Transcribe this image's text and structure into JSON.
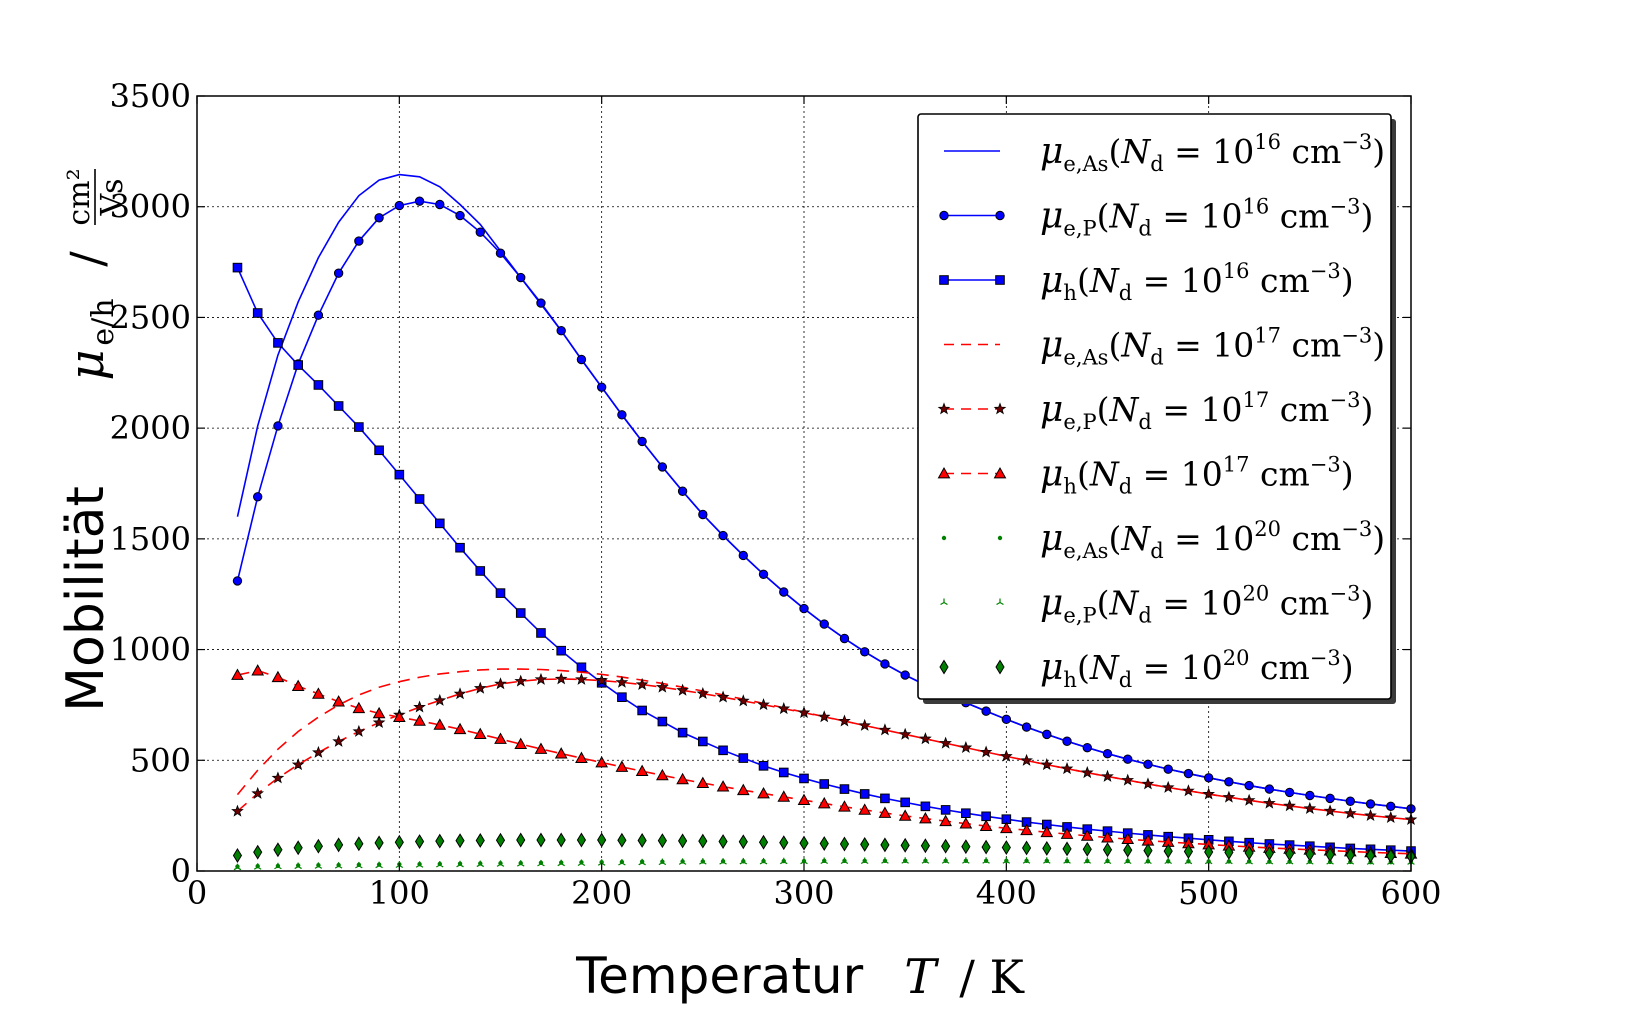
{
  "chart_data": {
    "type": "line",
    "title": "",
    "xlabel": {
      "word": "Temperatur",
      "sym": "T",
      "unit": "/ K"
    },
    "ylabel": {
      "word": "Mobilität",
      "sym": "μ",
      "sub": "e/h",
      "sep": "/",
      "unit_num": "cm²",
      "unit_den": "Vs"
    },
    "xlim": [
      0,
      600
    ],
    "ylim": [
      0,
      3500
    ],
    "xticks": [
      0,
      100,
      200,
      300,
      400,
      500,
      600
    ],
    "yticks": [
      0,
      500,
      1000,
      1500,
      2000,
      2500,
      3000,
      3500
    ],
    "grid": true,
    "legend_position": "top-right",
    "x": [
      20,
      30,
      40,
      50,
      60,
      70,
      80,
      90,
      100,
      110,
      120,
      130,
      140,
      150,
      160,
      170,
      180,
      190,
      200,
      210,
      220,
      230,
      240,
      250,
      260,
      270,
      280,
      290,
      300,
      310,
      320,
      330,
      340,
      350,
      360,
      370,
      380,
      390,
      400,
      410,
      420,
      430,
      440,
      450,
      460,
      470,
      480,
      490,
      500,
      510,
      520,
      530,
      540,
      550,
      560,
      570,
      580,
      590,
      600
    ],
    "series": [
      {
        "name": "μe,As(Nd = 10^16 cm^-3)",
        "label": {
          "mu": "μ",
          "sub": "e,As",
          "exp": "16"
        },
        "color": "#0000ff",
        "dash": "",
        "marker": "none",
        "values": [
          1600,
          2010,
          2330,
          2570,
          2770,
          2930,
          3050,
          3120,
          3145,
          3135,
          3090,
          3010,
          2920,
          2800,
          2680,
          2560,
          2440,
          2310,
          2185,
          2060,
          1940,
          1825,
          1715,
          1610,
          1515,
          1425,
          1340,
          1260,
          1185,
          1115,
          1050,
          990,
          935,
          885,
          840,
          800,
          760,
          722,
          685,
          650,
          617,
          586,
          557,
          530,
          505,
          482,
          460,
          440,
          421,
          403,
          386,
          370,
          355,
          341,
          328,
          315,
          303,
          292,
          281
        ]
      },
      {
        "name": "μe,P(Nd = 10^16 cm^-3)",
        "label": {
          "mu": "μ",
          "sub": "e,P",
          "exp": "16"
        },
        "color": "#0000ff",
        "dash": "",
        "marker": "circle",
        "values": [
          1310,
          1690,
          2010,
          2290,
          2510,
          2700,
          2845,
          2950,
          3005,
          3025,
          3010,
          2960,
          2885,
          2790,
          2680,
          2565,
          2440,
          2310,
          2185,
          2060,
          1940,
          1825,
          1715,
          1610,
          1515,
          1425,
          1340,
          1260,
          1185,
          1115,
          1050,
          990,
          935,
          885,
          840,
          800,
          760,
          722,
          685,
          650,
          617,
          586,
          557,
          530,
          505,
          482,
          460,
          440,
          421,
          403,
          386,
          370,
          355,
          341,
          328,
          315,
          303,
          292,
          281
        ]
      },
      {
        "name": "μh(Nd = 10^16 cm^-3)",
        "label": {
          "mu": "μ",
          "sub": "h",
          "exp": "16"
        },
        "color": "#0000ff",
        "dash": "",
        "marker": "square",
        "values": [
          2725,
          2520,
          2385,
          2285,
          2195,
          2100,
          2005,
          1900,
          1790,
          1680,
          1570,
          1460,
          1355,
          1255,
          1165,
          1075,
          995,
          920,
          850,
          785,
          725,
          675,
          625,
          585,
          545,
          510,
          475,
          445,
          418,
          393,
          370,
          348,
          328,
          310,
          292,
          276,
          261,
          247,
          234,
          221,
          210,
          199,
          189,
          180,
          171,
          163,
          155,
          148,
          141,
          134,
          128,
          122,
          117,
          112,
          107,
          102,
          98,
          94,
          90
        ]
      },
      {
        "name": "μe,As(Nd = 10^17 cm^-3)",
        "label": {
          "mu": "μ",
          "sub": "e,As",
          "exp": "17"
        },
        "color": "#ff0000",
        "dash": "12,8",
        "marker": "none",
        "values": [
          345,
          455,
          550,
          630,
          695,
          750,
          795,
          830,
          855,
          875,
          890,
          900,
          908,
          912,
          912,
          910,
          905,
          898,
          888,
          876,
          862,
          847,
          830,
          813,
          795,
          776,
          757,
          737,
          717,
          697,
          677,
          657,
          637,
          617,
          597,
          577,
          557,
          537,
          518,
          499,
          480,
          462,
          444,
          427,
          410,
          393,
          377,
          362,
          347,
          333,
          319,
          306,
          294,
          282,
          271,
          260,
          250,
          241,
          232
        ]
      },
      {
        "name": "μe,P(Nd = 10^17 cm^-3)",
        "label": {
          "mu": "μ",
          "sub": "e,P",
          "exp": "17"
        },
        "color": "#ff0000",
        "dash": "12,8",
        "marker": "star",
        "values": [
          270,
          350,
          420,
          480,
          535,
          585,
          630,
          670,
          705,
          740,
          770,
          800,
          825,
          845,
          857,
          865,
          867,
          865,
          860,
          852,
          842,
          830,
          816,
          801,
          785,
          768,
          751,
          733,
          715,
          696,
          677,
          657,
          637,
          617,
          597,
          577,
          557,
          537,
          518,
          499,
          480,
          462,
          444,
          427,
          410,
          393,
          377,
          362,
          347,
          333,
          319,
          306,
          294,
          282,
          271,
          260,
          250,
          241,
          232
        ]
      },
      {
        "name": "μh(Nd = 10^17 cm^-3)",
        "label": {
          "mu": "μ",
          "sub": "h",
          "exp": "17"
        },
        "color": "#ff0000",
        "dash": "12,8",
        "marker": "triangle",
        "values": [
          885,
          905,
          875,
          835,
          800,
          765,
          735,
          712,
          695,
          678,
          660,
          640,
          618,
          596,
          573,
          551,
          530,
          510,
          490,
          470,
          451,
          432,
          414,
          397,
          381,
          365,
          350,
          335,
          320,
          305,
          290,
          276,
          262,
          249,
          237,
          225,
          214,
          203,
          193,
          184,
          175,
          167,
          159,
          151,
          144,
          137,
          131,
          125,
          120,
          114,
          109,
          104,
          100,
          96,
          92,
          88,
          84,
          81,
          78
        ]
      },
      {
        "name": "μe,As(Nd = 10^20 cm^-3)",
        "label": {
          "mu": "μ",
          "sub": "e,As",
          "exp": "20"
        },
        "color": "#008000",
        "dash": "",
        "marker": "dot",
        "values": [
          20,
          22,
          23,
          25,
          26,
          27,
          28,
          29,
          30,
          31,
          32,
          33,
          34,
          35,
          36,
          37,
          38,
          39,
          40,
          41,
          42,
          42,
          43,
          43,
          44,
          44,
          45,
          45,
          45,
          46,
          46,
          46,
          46,
          46,
          46,
          46,
          46,
          46,
          46,
          46,
          46,
          45,
          45,
          45,
          45,
          44,
          44,
          44,
          43,
          43,
          43,
          42,
          42,
          42,
          41,
          41,
          40,
          40,
          40
        ]
      },
      {
        "name": "μe,P(Nd = 10^20 cm^-3)",
        "label": {
          "mu": "μ",
          "sub": "e,P",
          "exp": "20"
        },
        "color": "#008000",
        "dash": "",
        "marker": "tri",
        "values": [
          15,
          17,
          19,
          20,
          21,
          22,
          23,
          24,
          25,
          26,
          27,
          28,
          29,
          30,
          31,
          32,
          33,
          34,
          35,
          36,
          37,
          38,
          39,
          40,
          40,
          41,
          41,
          42,
          42,
          43,
          43,
          43,
          44,
          44,
          44,
          44,
          44,
          44,
          44,
          44,
          44,
          44,
          44,
          43,
          43,
          43,
          43,
          42,
          42,
          42,
          41,
          41,
          41,
          40,
          40,
          40,
          39,
          39,
          39
        ]
      },
      {
        "name": "μh(Nd = 10^20 cm^-3)",
        "label": {
          "mu": "μ",
          "sub": "h",
          "exp": "20"
        },
        "color": "#008000",
        "dash": "",
        "marker": "diamond",
        "values": [
          70,
          85,
          96,
          105,
          112,
          118,
          123,
          127,
          130,
          133,
          135,
          137,
          138,
          139,
          140,
          140,
          140,
          140,
          140,
          139,
          138,
          137,
          136,
          135,
          133,
          132,
          130,
          128,
          126,
          124,
          122,
          120,
          118,
          116,
          114,
          112,
          110,
          108,
          106,
          104,
          102,
          100,
          98,
          96,
          94,
          92,
          90,
          88,
          86,
          84,
          82,
          80,
          78,
          76,
          74,
          72,
          70,
          68,
          66
        ]
      }
    ]
  }
}
